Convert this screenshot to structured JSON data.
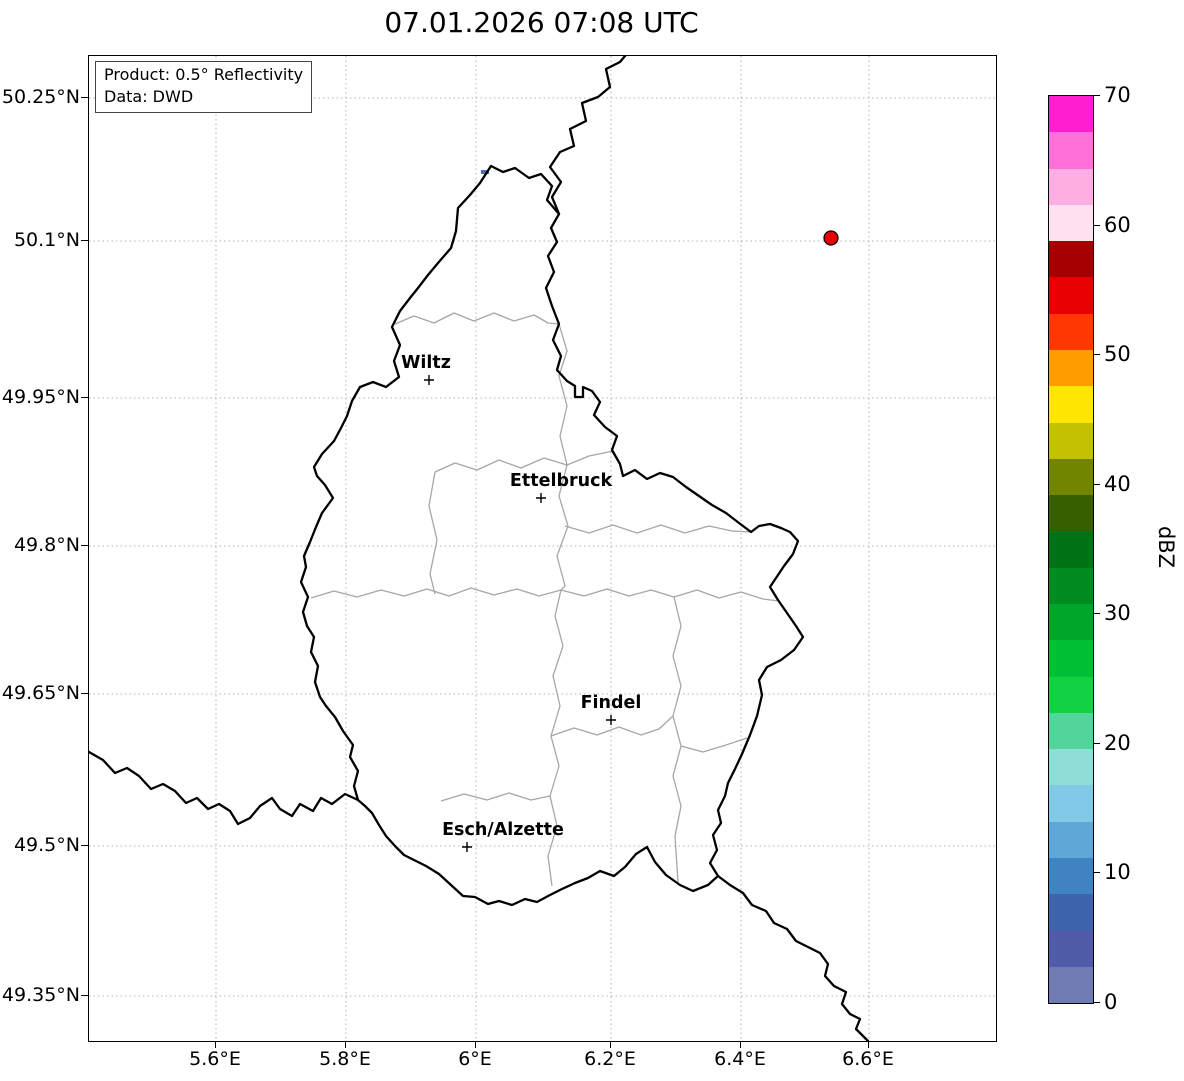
{
  "title": "07.01.2026 07:08 UTC",
  "info_box": {
    "product": "Product: 0.5° Reflectivity",
    "source": "Data: DWD"
  },
  "axes": {
    "x_tick_labels": [
      "5.6°E",
      "5.8°E",
      "6°E",
      "6.2°E",
      "6.4°E",
      "6.6°E"
    ],
    "y_tick_labels": [
      "50.25°N",
      "50.1°N",
      "49.95°N",
      "49.8°N",
      "49.65°N",
      "49.5°N",
      "49.35°N"
    ]
  },
  "cities": [
    {
      "name": "Wiltz"
    },
    {
      "name": "Ettelbruck"
    },
    {
      "name": "Findel"
    },
    {
      "name": "Esch/Alzette"
    }
  ],
  "colorbar": {
    "label": "dBZ",
    "tick_labels": [
      "0",
      "10",
      "20",
      "30",
      "40",
      "50",
      "60",
      "70"
    ],
    "range": [
      0,
      70
    ],
    "colors_low_to_high": [
      "#707bb4",
      "#515ca9",
      "#3d64ad",
      "#3f83c0",
      "#5fa7d7",
      "#81c9e7",
      "#8eddd6",
      "#52d49a",
      "#12d244",
      "#00c136",
      "#00a62a",
      "#008c20",
      "#007216",
      "#375f00",
      "#728400",
      "#c2c200",
      "#ffe600",
      "#ff9c00",
      "#ff3700",
      "#e60000",
      "#a50000",
      "#ffe1f2",
      "#ffaee4",
      "#ff6fd8",
      "#ff1fd0"
    ]
  },
  "markers": {
    "radar_dot_color": "#e60000",
    "echo_color": "#4c6fb0"
  },
  "chart_data": {
    "type": "map",
    "title": "07.01.2026 07:08 UTC",
    "product": "0.5° Reflectivity",
    "data_source": "DWD",
    "colorbar_units": "dBZ",
    "colorbar_range": [
      0,
      70
    ],
    "colorbar_ticks": [
      0,
      10,
      20,
      30,
      40,
      50,
      60,
      70
    ],
    "x_axis_ticks_deg_east": [
      5.6,
      5.8,
      6.0,
      6.2,
      6.4,
      6.6
    ],
    "y_axis_ticks_deg_north": [
      50.25,
      50.1,
      49.95,
      49.8,
      49.65,
      49.5,
      49.35
    ],
    "labeled_places": [
      "Wiltz",
      "Ettelbruck",
      "Findel",
      "Esch/Alzette"
    ],
    "point_markers": [
      {
        "kind": "red-dot",
        "approx_lon_e": 6.55,
        "approx_lat_n": 50.11
      },
      {
        "kind": "small-blue-echo",
        "approx_lon_e": 6.01,
        "approx_lat_n": 50.17
      }
    ]
  }
}
